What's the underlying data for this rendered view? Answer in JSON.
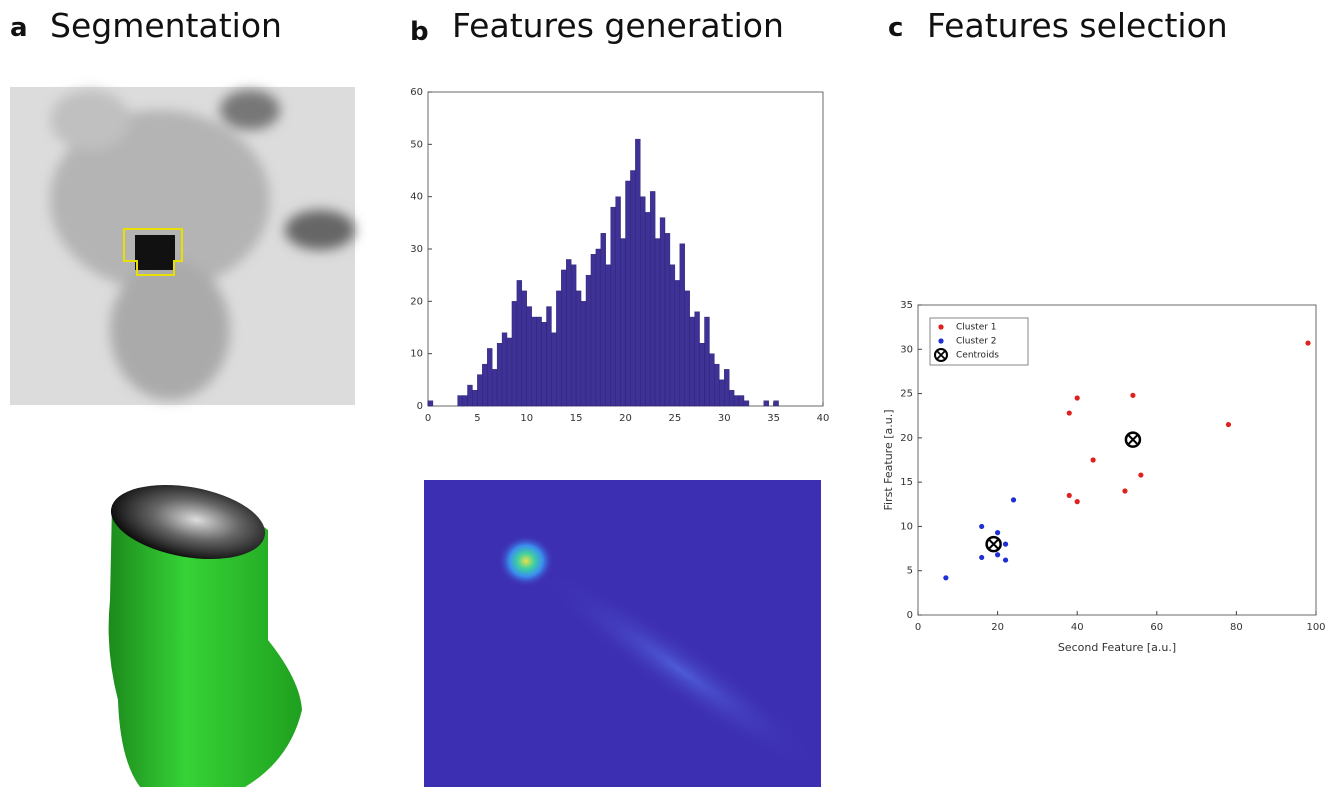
{
  "panels": [
    {
      "letter": "a",
      "title": "Segmentation"
    },
    {
      "letter": "b",
      "title": "Features generation"
    },
    {
      "letter": "c",
      "title": "Features selection"
    }
  ],
  "chart_data": [
    {
      "type": "histogram",
      "color": "#3f3296",
      "bins": [
        0,
        0.5,
        1,
        1.5,
        2,
        2.5,
        3,
        3.5,
        4,
        4.5,
        5,
        5.5,
        6,
        6.5,
        7,
        7.5,
        8,
        8.5,
        9,
        9.5,
        10,
        10.5,
        11,
        11.5,
        12,
        12.5,
        13,
        13.5,
        14,
        14.5,
        15,
        15.5,
        16,
        16.5,
        17,
        17.5,
        18,
        18.5,
        19,
        19.5,
        20,
        20.5,
        21,
        21.5,
        22,
        22.5,
        23,
        23.5,
        24,
        24.5,
        25,
        25.5,
        26,
        26.5,
        27,
        27.5,
        28,
        28.5,
        29,
        29.5,
        30,
        30.5,
        31,
        31.5,
        32,
        32.5,
        33,
        33.5,
        34,
        34.5,
        35,
        35.5,
        36
      ],
      "values": [
        1,
        0,
        0,
        0,
        0,
        0,
        2,
        2,
        4,
        3,
        6,
        8,
        11,
        7,
        12,
        14,
        13,
        20,
        24,
        22,
        19,
        17,
        17,
        16,
        19,
        14,
        22,
        26,
        28,
        27,
        22,
        20,
        25,
        29,
        30,
        33,
        27,
        38,
        40,
        32,
        43,
        45,
        51,
        40,
        37,
        41,
        32,
        36,
        33,
        27,
        24,
        31,
        22,
        17,
        18,
        12,
        17,
        10,
        8,
        5,
        7,
        3,
        2,
        2,
        1,
        0,
        0,
        0,
        1,
        0,
        1,
        0
      ],
      "xlim": [
        0,
        40
      ],
      "xticks": [
        0,
        5,
        10,
        15,
        20,
        25,
        30,
        35,
        40
      ],
      "ylim": [
        0,
        60
      ],
      "yticks": [
        0,
        10,
        20,
        30,
        40,
        50,
        60
      ]
    },
    {
      "type": "scatter",
      "x_label": "Second Feature [a.u.]",
      "y_label": "First Feature [a.u.]",
      "xlim": [
        0,
        100
      ],
      "xticks": [
        0,
        20,
        40,
        60,
        80,
        100
      ],
      "ylim": [
        0,
        35
      ],
      "yticks": [
        0,
        5,
        10,
        15,
        20,
        25,
        30,
        35
      ],
      "legend": "upper left",
      "series": [
        {
          "name": "Cluster 1",
          "color": "#e0201c",
          "marker": "dot",
          "x": [
            98,
            54,
            40,
            38,
            78,
            44,
            56,
            38,
            52,
            40
          ],
          "values": [
            30.7,
            24.8,
            24.5,
            22.8,
            21.5,
            17.5,
            15.8,
            13.5,
            14,
            12.8
          ]
        },
        {
          "name": "Cluster 2",
          "color": "#1f2fd6",
          "marker": "dot",
          "x": [
            24,
            16,
            20,
            18,
            22,
            16,
            20,
            22,
            7
          ],
          "values": [
            13,
            10,
            9.3,
            8,
            8,
            6.5,
            6.8,
            6.2,
            4.2
          ]
        },
        {
          "name": "Centroids",
          "color": "#000000",
          "marker": "circle-x",
          "x": [
            54,
            19
          ],
          "values": [
            19.8,
            8
          ]
        }
      ]
    }
  ]
}
